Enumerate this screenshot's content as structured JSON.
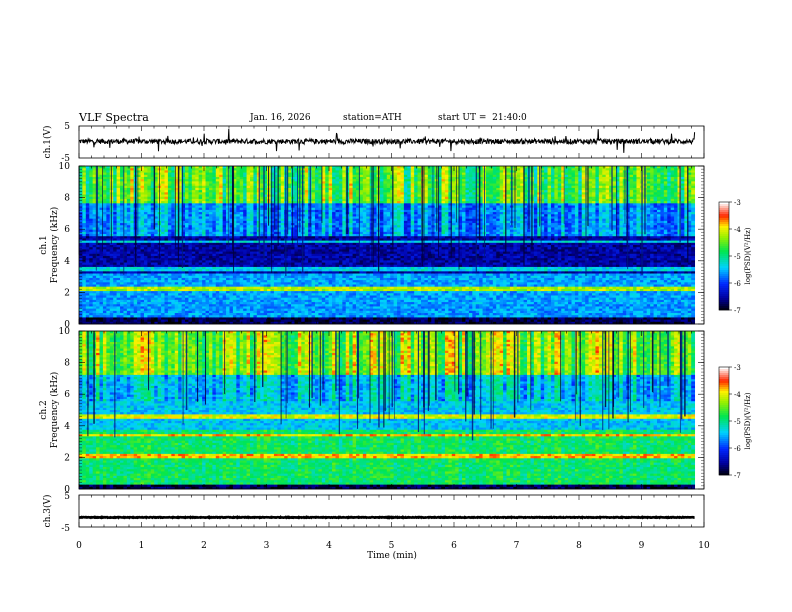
{
  "header": {
    "title": "VLF Spectra",
    "date": "Jan. 16, 2026",
    "station": "station=ATH",
    "start_ut": "start UT =  21:40:0"
  },
  "chart_data": [
    {
      "type": "line",
      "panel": "ch1-waveform",
      "ylabel": "ch.1(V)",
      "ylim": [
        -5,
        5
      ],
      "yticks": [
        "5",
        "-5"
      ],
      "xlim": [
        0,
        10
      ],
      "baseline": 0.2
    },
    {
      "type": "heatmap",
      "panel": "ch1-spectrogram",
      "ylabel": "ch.1 Frequency (kHz)",
      "ylabel_line1": "ch.1",
      "ylabel_line2": "Frequency (kHz)",
      "ylim": [
        0,
        10
      ],
      "yticks": [
        "0",
        "2",
        "4",
        "6",
        "8",
        "10"
      ],
      "xlim": [
        0,
        10
      ],
      "data_end_min": 9.85,
      "colorbar": {
        "label": "log(PSD)(V²/Hz)",
        "ticks": [
          "-3",
          "-4",
          "-5",
          "-6",
          "-7"
        ],
        "range": [
          -7,
          -3
        ]
      }
    },
    {
      "type": "heatmap",
      "panel": "ch2-spectrogram",
      "ylabel": "ch.2 Frequency (kHz)",
      "ylabel_line1": "ch.2",
      "ylabel_line2": "Frequency (kHz)",
      "ylim": [
        0,
        10
      ],
      "yticks": [
        "0",
        "2",
        "4",
        "6",
        "8",
        "10"
      ],
      "xlim": [
        0,
        10
      ],
      "data_end_min": 9.85,
      "colorbar": {
        "label": "log(PSD)(V²/Hz)",
        "ticks": [
          "-3",
          "-4",
          "-5",
          "-6",
          "-7"
        ],
        "range": [
          -7,
          -3
        ]
      }
    },
    {
      "type": "line",
      "panel": "ch3-waveform",
      "ylabel": "ch.3(V)",
      "ylim": [
        -5,
        5
      ],
      "yticks": [
        "5",
        "-5"
      ],
      "xlim": [
        0,
        10
      ],
      "xlabel": "Time (min)",
      "xticks": [
        "0",
        "1",
        "2",
        "3",
        "4",
        "5",
        "6",
        "7",
        "8",
        "9",
        "10"
      ],
      "baseline": -2.0
    }
  ]
}
